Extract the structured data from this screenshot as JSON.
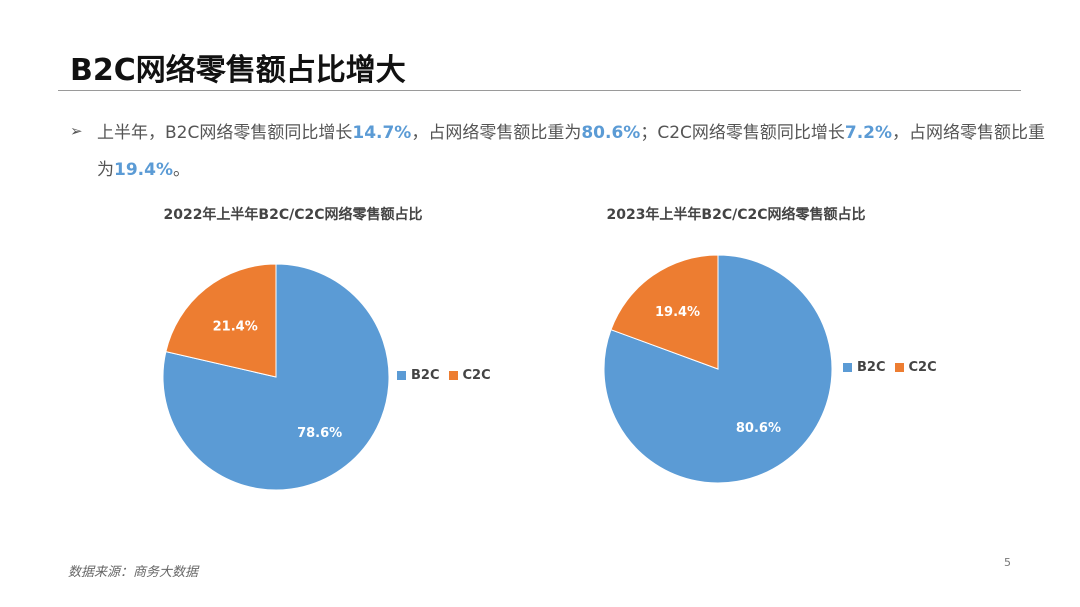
{
  "slide": {
    "title": "B2C网络零售额占比增大",
    "page_number": "5",
    "source": "数据来源：商务大数据"
  },
  "summary": {
    "bullet": "➢",
    "seg1": "上半年，B2C网络零售额同比增长",
    "v1": "14.7%",
    "seg2": "，占网络零售额比重为",
    "v2": "80.6%",
    "seg3": "；C2C网络零售额同比增长",
    "v3": "7.2%",
    "seg4": "，占网络零售额比重为",
    "v4": "19.4%",
    "seg5": "。"
  },
  "colors": {
    "b2c": "#5b9bd5",
    "c2c": "#ed7d31",
    "highlight": "#5b9bd5"
  },
  "chart_data": [
    {
      "type": "pie",
      "title": "2022年上半年B2C/C2C网络零售额占比",
      "labels": [
        "B2C",
        "C2C"
      ],
      "values": [
        78.6,
        21.4
      ],
      "data_labels": [
        "78.6%",
        "21.4%"
      ],
      "legend_position": "right"
    },
    {
      "type": "pie",
      "title": "2023年上半年B2C/C2C网络零售额占比",
      "labels": [
        "B2C",
        "C2C"
      ],
      "values": [
        80.6,
        19.4
      ],
      "data_labels": [
        "80.6%",
        "19.4%"
      ],
      "legend_position": "right"
    }
  ]
}
